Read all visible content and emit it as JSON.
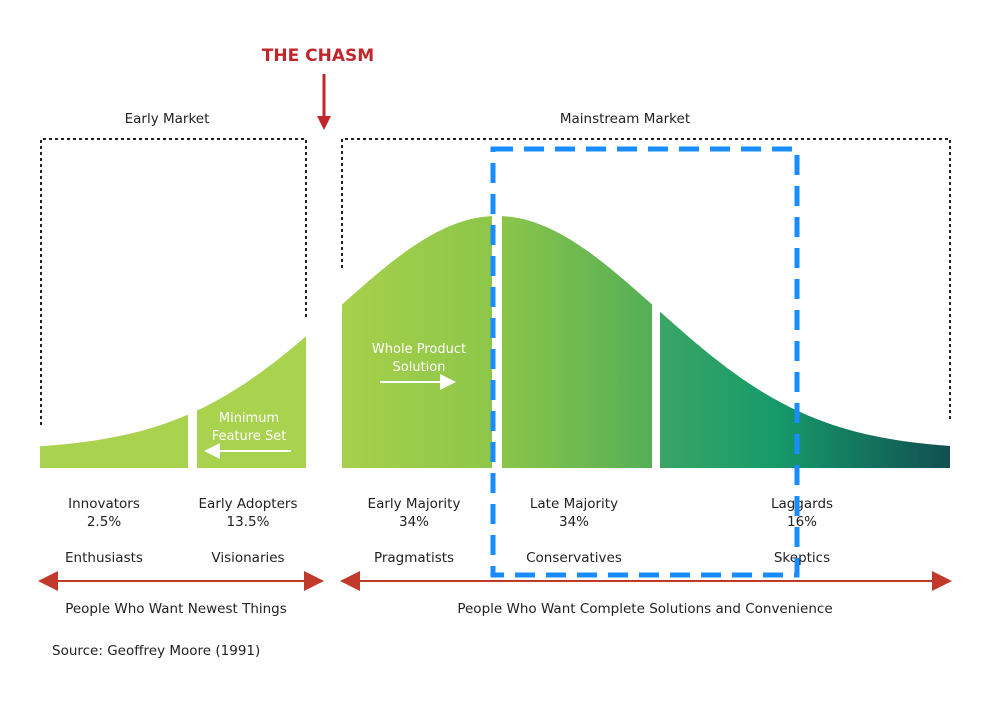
{
  "title": "THE CHASM",
  "markets": {
    "early": "Early Market",
    "mainstream": "Mainstream Market"
  },
  "segments": [
    {
      "name": "Innovators",
      "share": "2.5%",
      "trait": "Enthusiasts"
    },
    {
      "name": "Early Adopters",
      "share": "13.5%",
      "trait": "Visionaries"
    },
    {
      "name": "Early Majority",
      "share": "34%",
      "trait": "Pragmatists"
    },
    {
      "name": "Late Majority",
      "share": "34%",
      "trait": "Conservatives"
    },
    {
      "name": "Laggards",
      "share": "16%",
      "trait": "Skeptics"
    }
  ],
  "annotations": {
    "minimum_1": "Minimum",
    "minimum_2": "Feature Set",
    "whole_1": "Whole Product",
    "whole_2": "Solution"
  },
  "captions": {
    "left": "People Who Want Newest Things",
    "right": "People Who Want Complete Solutions and Convenience"
  },
  "source": "Source: Geoffrey Moore (1991)",
  "colors": {
    "chasm": "#c0272d",
    "highlight": "#1a8cff",
    "arrow": "#c0392b"
  }
}
